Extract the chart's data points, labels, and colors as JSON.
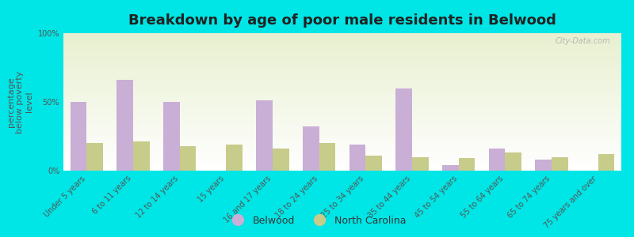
{
  "title": "Breakdown by age of poor male residents in Belwood",
  "ylabel": "percentage\nbelow poverty\nlevel",
  "categories": [
    "Under 5 years",
    "6 to 11 years",
    "12 to 14 years",
    "15 years",
    "16 and 17 years",
    "18 to 24 years",
    "25 to 34 years",
    "35 to 44 years",
    "45 to 54 years",
    "55 to 64 years",
    "65 to 74 years",
    "75 years and over"
  ],
  "belwood_values": [
    50,
    66,
    50,
    0,
    51,
    32,
    19,
    60,
    4,
    16,
    8,
    0
  ],
  "nc_values": [
    20,
    21,
    18,
    19,
    16,
    20,
    11,
    10,
    9,
    13,
    10,
    12
  ],
  "belwood_color": "#c9aed6",
  "nc_color": "#c8cc8a",
  "background_color": "#00e5e5",
  "plot_bg_top_color": "#e8f0d0",
  "plot_bg_bottom_color": "#ffffff",
  "ylim": [
    0,
    100
  ],
  "ytick_labels": [
    "0%",
    "50%",
    "100%"
  ],
  "title_fontsize": 13,
  "ylabel_fontsize": 8,
  "tick_label_fontsize": 7,
  "legend_fontsize": 9,
  "watermark": "City-Data.com"
}
